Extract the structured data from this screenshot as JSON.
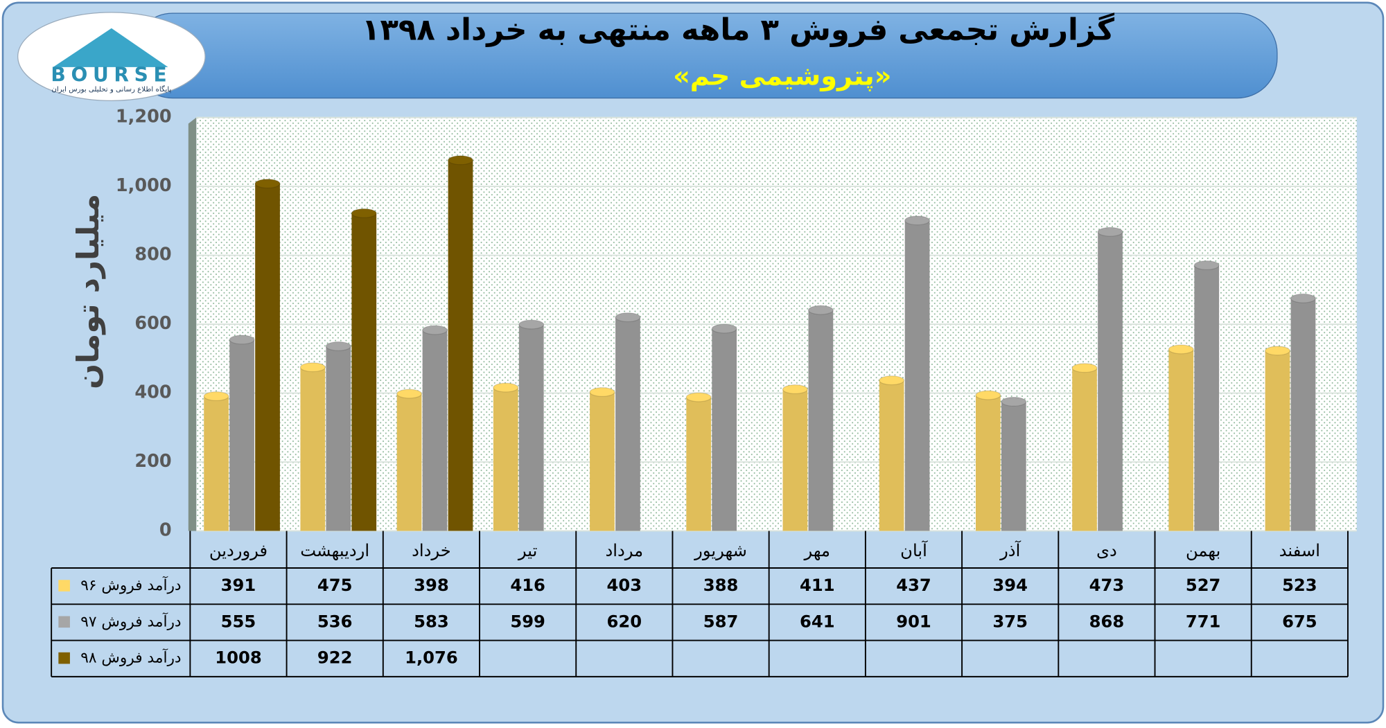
{
  "logo": {
    "text": "BOURSE",
    "tagline": "پایگاه اطلاع رسانی و تحلیلی بورس ایران"
  },
  "chart_data": {
    "type": "bar",
    "title": "گزارش تجمعی فروش ۳ ماهه منتهی به خرداد ۱۳۹۸",
    "subtitle": "«پتروشیمی جم»",
    "y_label": "میلیارد تومان",
    "categories": [
      "فروردین",
      "اردیبهشت",
      "خرداد",
      "تیر",
      "مرداد",
      "شهریور",
      "مهر",
      "آبان",
      "آذر",
      "دی",
      "بهمن",
      "اسفند"
    ],
    "series": [
      {
        "name": "درآمد فروش ۹۶",
        "color": "#ffd966",
        "values": [
          391,
          475,
          398,
          416,
          403,
          388,
          411,
          437,
          394,
          473,
          527,
          523
        ]
      },
      {
        "name": "درآمد فروش ۹۷",
        "color": "#a6a6a6",
        "values": [
          555,
          536,
          583,
          599,
          620,
          587,
          641,
          901,
          375,
          868,
          771,
          675
        ]
      },
      {
        "name": "درآمد فروش ۹۸",
        "color": "#7f6000",
        "values": [
          1008,
          922,
          1076,
          null,
          null,
          null,
          null,
          null,
          null,
          null,
          null,
          null
        ],
        "value_labels": [
          "1008",
          "922",
          "1,076",
          null,
          null,
          null,
          null,
          null,
          null,
          null,
          null,
          null
        ]
      }
    ],
    "ylim": [
      0,
      1200
    ],
    "yticks": [
      0,
      200,
      400,
      600,
      800,
      {
        "value": 1000,
        "label": "1,000"
      },
      {
        "value": 1200,
        "label": "1,200"
      }
    ],
    "grid": true
  }
}
